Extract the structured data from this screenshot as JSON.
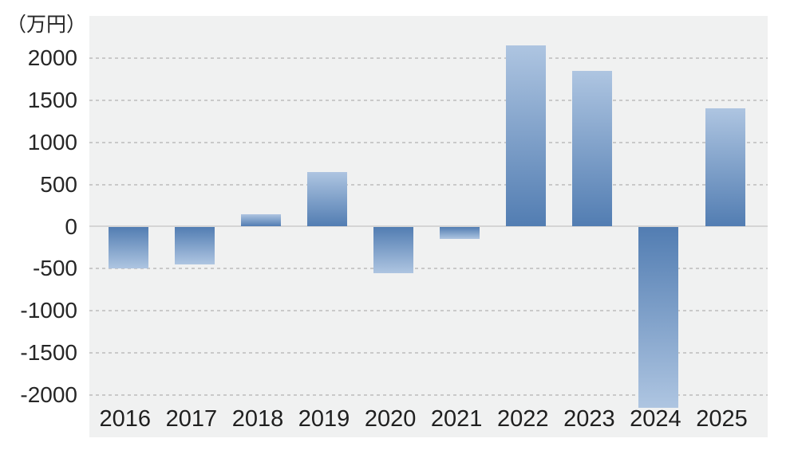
{
  "chart_data": {
    "type": "bar",
    "title": "",
    "unit_label": "（万円）",
    "xlabel": "",
    "ylabel": "万円",
    "categories": [
      "2016",
      "2017",
      "2018",
      "2019",
      "2020",
      "2021",
      "2022",
      "2023",
      "2024",
      "2025"
    ],
    "values": [
      -500,
      -450,
      150,
      650,
      -550,
      -150,
      2150,
      1850,
      -2150,
      1400
    ],
    "yticks": [
      2000,
      1500,
      1000,
      500,
      0,
      -500,
      -1000,
      -1500,
      -2000
    ],
    "ylim": [
      -2500,
      2500
    ],
    "legend": "none",
    "grid": "horizontal-dashed",
    "colors": {
      "plot_background": "#f0f1f1",
      "gridline": "#c9c9c9",
      "zero_line": "#d5d5d5",
      "bar_tip": "#aec5e1",
      "bar_base": "#527db2",
      "text": "#262626"
    }
  }
}
